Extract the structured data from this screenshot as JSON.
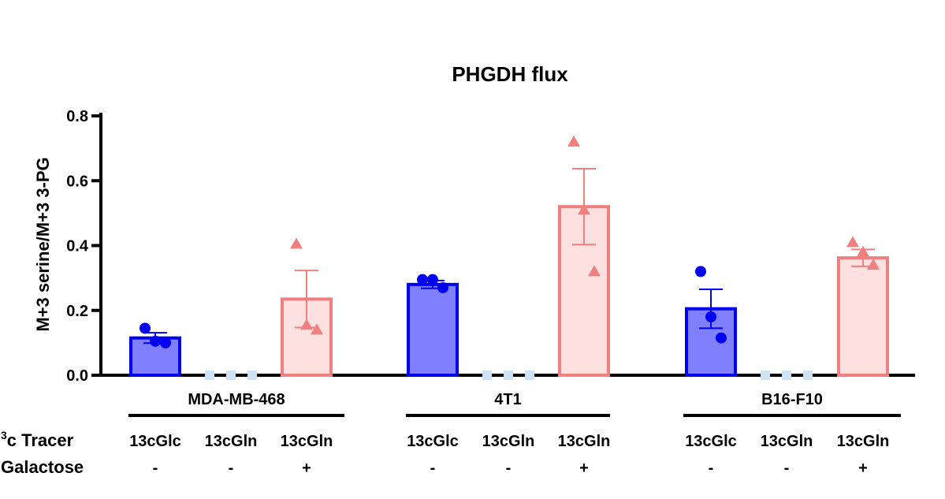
{
  "chart_data": {
    "type": "bar",
    "title": "PHGDH flux",
    "ylabel": "M+3 serine/M+3 3-PG",
    "ylim": [
      0,
      0.8
    ],
    "yticks": [
      "0.0",
      "0.2",
      "0.4",
      "0.6",
      "0.8"
    ],
    "yticks_values": [
      0,
      0.2,
      0.4,
      0.6,
      0.8
    ],
    "grid": false,
    "groups": [
      "MDA-MB-468",
      "4T1",
      "B16-F10"
    ],
    "bars": [
      {
        "group": "MDA-MB-468",
        "tracer": "13cGlc",
        "galactose": "-",
        "mean": 0.115,
        "sem": 0.016,
        "points": [
          0.145,
          0.105,
          0.1
        ],
        "marker": "circle",
        "color": "#0000ee",
        "fill": "#8080ff"
      },
      {
        "group": "MDA-MB-468",
        "tracer": "13cGln",
        "galactose": "-",
        "mean": 0.0,
        "sem": 0.0,
        "points": [
          0.0,
          0.0,
          0.0
        ],
        "marker": "square",
        "color": "#cfe2f3",
        "fill": "#cfe2f3"
      },
      {
        "group": "MDA-MB-468",
        "tracer": "13cGln",
        "galactose": "+",
        "mean": 0.235,
        "sem": 0.088,
        "points": [
          0.405,
          0.155,
          0.14
        ],
        "marker": "triangle",
        "color": "#f08080",
        "fill": "#fde0e0"
      },
      {
        "group": "4T1",
        "tracer": "13cGlc",
        "galactose": "-",
        "mean": 0.28,
        "sem": 0.012,
        "points": [
          0.295,
          0.295,
          0.27
        ],
        "marker": "circle",
        "color": "#0000ee",
        "fill": "#8080ff"
      },
      {
        "group": "4T1",
        "tracer": "13cGln",
        "galactose": "-",
        "mean": 0.0,
        "sem": 0.0,
        "points": [
          0.0,
          0.0,
          0.0
        ],
        "marker": "square",
        "color": "#cfe2f3",
        "fill": "#cfe2f3"
      },
      {
        "group": "4T1",
        "tracer": "13cGln",
        "galactose": "+",
        "mean": 0.52,
        "sem": 0.117,
        "points": [
          0.72,
          0.51,
          0.32
        ],
        "marker": "triangle",
        "color": "#f08080",
        "fill": "#fde0e0"
      },
      {
        "group": "B16-F10",
        "tracer": "13cGlc",
        "galactose": "-",
        "mean": 0.205,
        "sem": 0.06,
        "points": [
          0.32,
          0.18,
          0.115
        ],
        "marker": "circle",
        "color": "#0000ee",
        "fill": "#8080ff"
      },
      {
        "group": "B16-F10",
        "tracer": "13cGln",
        "galactose": "-",
        "mean": 0.0,
        "sem": 0.0,
        "points": [
          0.0,
          0.0,
          0.0
        ],
        "marker": "square",
        "color": "#cfe2f3",
        "fill": "#cfe2f3"
      },
      {
        "group": "B16-F10",
        "tracer": "13cGln",
        "galactose": "+",
        "mean": 0.362,
        "sem": 0.026,
        "points": [
          0.41,
          0.38,
          0.34
        ],
        "marker": "triangle",
        "color": "#f08080",
        "fill": "#fde0e0"
      }
    ],
    "row_labels": {
      "tracer_sup": "3",
      "tracer": "c Tracer",
      "galactose": "Galactose"
    }
  }
}
